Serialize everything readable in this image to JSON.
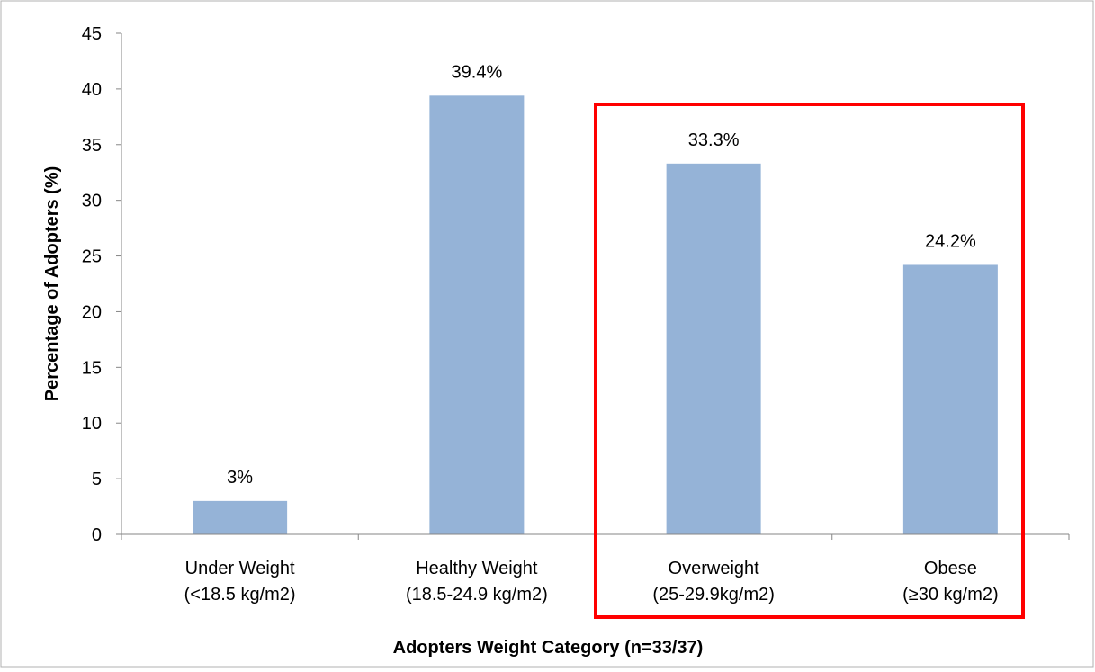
{
  "chart_data": {
    "type": "bar",
    "categories": [
      [
        "Under Weight",
        "(<18.5 kg/m2)"
      ],
      [
        "Healthy Weight",
        "(18.5-24.9 kg/m2)"
      ],
      [
        "Overweight",
        "(25-29.9kg/m2)"
      ],
      [
        "Obese",
        "(≥30 kg/m2)"
      ]
    ],
    "values": [
      3,
      39.4,
      33.3,
      24.2
    ],
    "data_labels": [
      "3%",
      "39.4%",
      "33.3%",
      "24.2%"
    ],
    "xlabel": "Adopters Weight Category  (n=33/37)",
    "ylabel": "Percentage of Adopters (%)",
    "ylim": [
      0,
      45
    ],
    "yticks": [
      0,
      5,
      10,
      15,
      20,
      25,
      30,
      35,
      40,
      45
    ],
    "grid": false,
    "bar_color": "#95b3d7",
    "highlight": {
      "categories": [
        2,
        3
      ],
      "color": "#ff0000"
    }
  }
}
